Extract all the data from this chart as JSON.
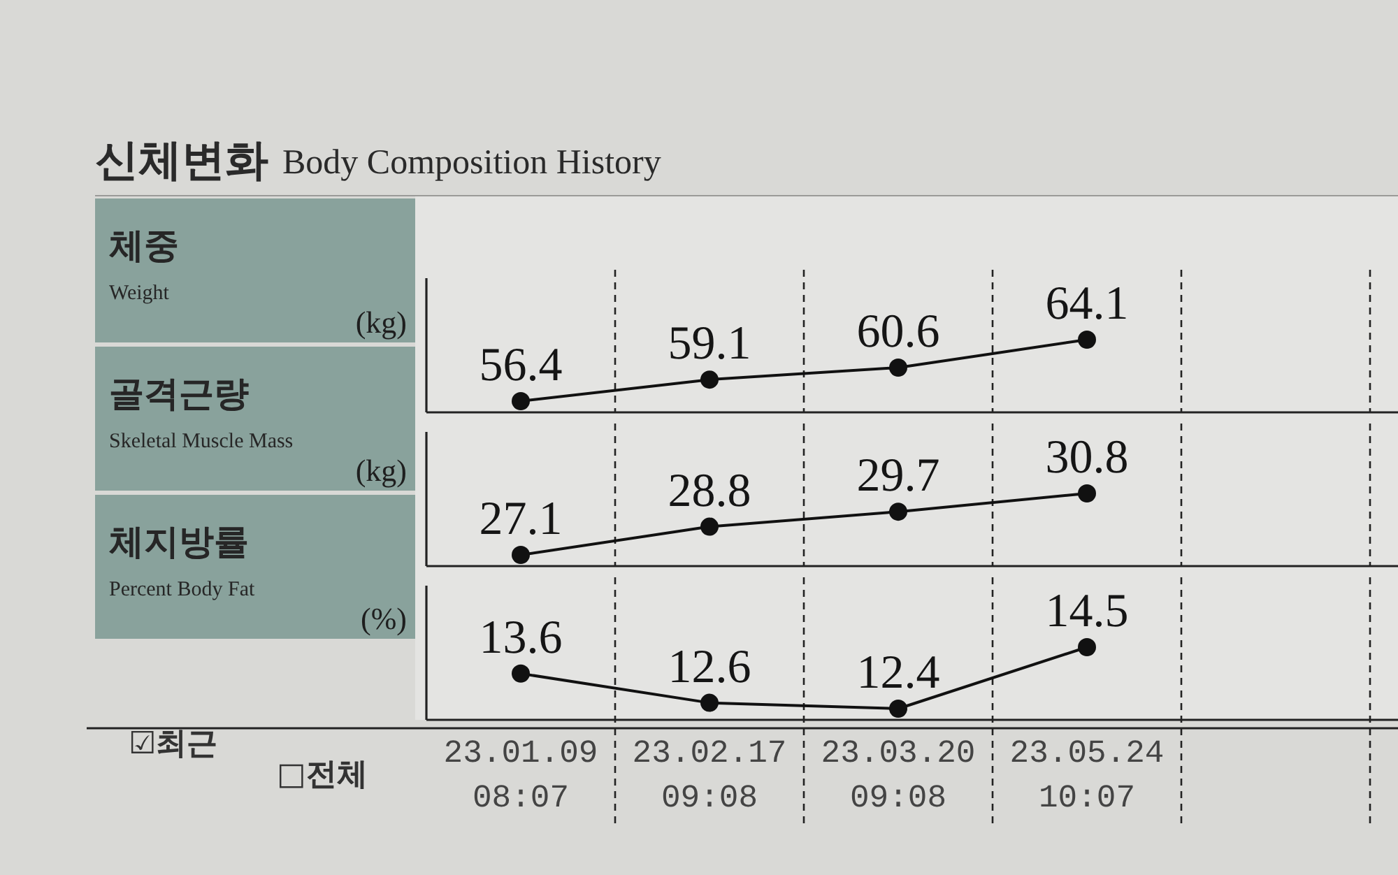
{
  "chart_data": [
    {
      "type": "line",
      "title": "신체변화",
      "subtitle": "Body Composition History",
      "ylabel": "체중\nWeight\n(kg)",
      "categories": [
        "23.01.09 08:07",
        "23.02.17 09:08",
        "23.03.20 09:08",
        "23.05.24 10:07",
        null
      ],
      "values": [
        56.4,
        59.1,
        60.6,
        64.1,
        null
      ],
      "color": "#111111",
      "data_labels": true,
      "marker": "circle",
      "line_style": "solid",
      "grid": "x",
      "tick_labels": false
    },
    {
      "type": "line",
      "ylabel": "골격근량\nSkeletal Muscle Mass\n(kg)",
      "categories": [
        "23.01.09 08:07",
        "23.02.17 09:08",
        "23.03.20 09:08",
        "23.05.24 10:07",
        null
      ],
      "values": [
        27.1,
        28.8,
        29.7,
        30.8,
        null
      ],
      "color": "#111111",
      "data_labels": true,
      "marker": "circle",
      "line_style": "solid",
      "grid": "x",
      "tick_labels": false
    },
    {
      "type": "line",
      "ylabel": "체지방률\nPercent Body Fat\n(%)",
      "categories": [
        "23.01.09 08:07",
        "23.02.17 09:08",
        "23.03.20 09:08",
        "23.05.24 10:07",
        null
      ],
      "values": [
        13.6,
        12.6,
        12.4,
        14.5,
        null
      ],
      "color": "#111111",
      "data_labels": true,
      "marker": "circle",
      "line_style": "solid",
      "grid": "x",
      "tick_labels": "x",
      "annotations": [
        "☑최근",
        "□전체"
      ]
    }
  ]
}
